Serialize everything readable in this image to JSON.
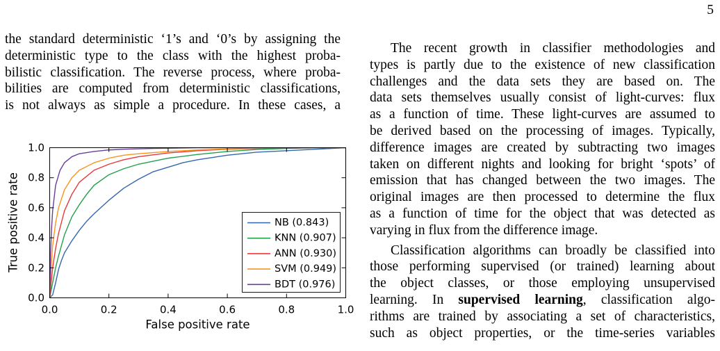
{
  "page_number": "5",
  "left_column": {
    "lines": [
      "the standard deterministic ‘1’s and ‘0’s by assigning the",
      "deterministic type to the class with the highest proba-",
      "bilistic classification. The reverse process, where proba-",
      "bilities are computed from deterministic classifications,",
      "is not always as simple a procedure. In these cases, a"
    ]
  },
  "right_column": {
    "paragraph_1": [
      "The recent growth in classifier methodologies and",
      "types is partly due to the existence of new classification",
      "challenges and the data sets they are based on. The",
      "data sets themselves usually consist of light-curves: flux",
      "as a function of time. These light-curves are assumed to",
      "be derived based on the processing of images. Typically,",
      "difference images are created by subtracting two images",
      "taken on different nights and looking for bright ‘spots’ of",
      "emission that has changed between the two images. The",
      "original images are then processed to determine the flux",
      "as a function of time for the object that was detected as",
      "varying in flux from the difference image."
    ],
    "paragraph_2": [
      "Classification algorithms can broadly be classified into",
      "those performing supervised (or trained) learning about",
      "the object classes, or those employing unsupervised",
      {
        "before": "learning. In ",
        "bold": "supervised learning",
        "after": ", classification algo-"
      },
      "rithms are trained by associating a set of characteristics,",
      "such as object properties, or the time-series variables"
    ]
  },
  "chart_data": {
    "type": "line",
    "xlabel": "False positive rate",
    "ylabel": "True positive rate",
    "xlim": [
      0,
      1
    ],
    "ylim": [
      0,
      1
    ],
    "x_ticks": [
      "0.0",
      "0.2",
      "0.4",
      "0.6",
      "0.8",
      "1.0"
    ],
    "y_ticks": [
      "0.0",
      "0.2",
      "0.4",
      "0.6",
      "0.8",
      "1.0"
    ],
    "grid": false,
    "legend_position": "lower right",
    "series": [
      {
        "name": "NB (0.843)",
        "color": "#3466ae",
        "x": [
          0,
          0.01,
          0.02,
          0.03,
          0.04,
          0.05,
          0.075,
          0.1,
          0.125,
          0.15,
          0.2,
          0.25,
          0.3,
          0.35,
          0.4,
          0.45,
          0.5,
          0.6,
          0.7,
          0.8,
          0.9,
          1.0
        ],
        "y": [
          0,
          0.02,
          0.1,
          0.19,
          0.25,
          0.3,
          0.38,
          0.45,
          0.51,
          0.56,
          0.65,
          0.73,
          0.79,
          0.84,
          0.87,
          0.9,
          0.92,
          0.95,
          0.97,
          0.98,
          0.99,
          1.0
        ]
      },
      {
        "name": "KNN (0.907)",
        "color": "#22a04a",
        "x": [
          0,
          0.01,
          0.02,
          0.03,
          0.05,
          0.075,
          0.1,
          0.125,
          0.15,
          0.2,
          0.25,
          0.3,
          0.35,
          0.4,
          0.5,
          0.6,
          0.7,
          0.8,
          0.9,
          1.0
        ],
        "y": [
          0,
          0.1,
          0.2,
          0.28,
          0.42,
          0.54,
          0.62,
          0.69,
          0.75,
          0.82,
          0.86,
          0.89,
          0.91,
          0.93,
          0.955,
          0.975,
          0.988,
          0.995,
          0.999,
          1.0
        ]
      },
      {
        "name": "ANN (0.930)",
        "color": "#e8383a",
        "x": [
          0,
          0.005,
          0.01,
          0.02,
          0.03,
          0.05,
          0.075,
          0.1,
          0.15,
          0.2,
          0.25,
          0.3,
          0.4,
          0.5,
          0.6,
          0.7,
          0.8,
          1.0
        ],
        "y": [
          0,
          0.1,
          0.2,
          0.33,
          0.43,
          0.58,
          0.69,
          0.77,
          0.85,
          0.89,
          0.92,
          0.94,
          0.965,
          0.98,
          0.99,
          0.995,
          1.0,
          1.0
        ]
      },
      {
        "name": "SVM (0.949)",
        "color": "#f7941d",
        "x": [
          0,
          0.005,
          0.01,
          0.02,
          0.03,
          0.05,
          0.075,
          0.1,
          0.15,
          0.2,
          0.25,
          0.3,
          0.4,
          0.5,
          0.6,
          0.7,
          0.8,
          1.0
        ],
        "y": [
          0,
          0.2,
          0.35,
          0.5,
          0.6,
          0.72,
          0.8,
          0.85,
          0.9,
          0.93,
          0.95,
          0.96,
          0.975,
          0.985,
          0.992,
          0.997,
          1.0,
          1.0
        ]
      },
      {
        "name": "BDT (0.976)",
        "color": "#6a3d9a",
        "x": [
          0,
          0.003,
          0.006,
          0.01,
          0.02,
          0.035,
          0.05,
          0.075,
          0.1,
          0.15,
          0.2,
          0.25,
          0.35,
          0.5,
          1.0
        ],
        "y": [
          0,
          0.3,
          0.45,
          0.58,
          0.75,
          0.85,
          0.9,
          0.94,
          0.96,
          0.975,
          0.985,
          0.99,
          0.995,
          1.0,
          1.0
        ]
      }
    ]
  }
}
